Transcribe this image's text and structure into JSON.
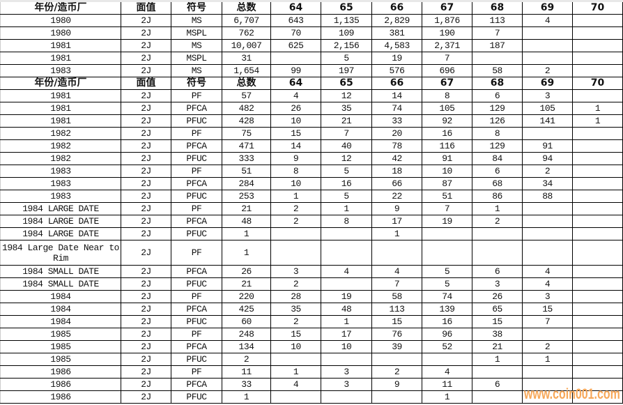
{
  "headers": [
    "年份/造币厂",
    "面值",
    "符号",
    "总数",
    "64",
    "65",
    "66",
    "67",
    "68",
    "69",
    "70"
  ],
  "section1": [
    [
      "1980",
      "2J",
      "MS",
      "6,707",
      "643",
      "1,135",
      "2,829",
      "1,876",
      "113",
      "4",
      ""
    ],
    [
      "1980",
      "2J",
      "MSPL",
      "762",
      "70",
      "109",
      "381",
      "190",
      "7",
      "",
      ""
    ],
    [
      "1981",
      "2J",
      "MS",
      "10,007",
      "625",
      "2,156",
      "4,583",
      "2,371",
      "187",
      "",
      ""
    ],
    [
      "1981",
      "2J",
      "MSPL",
      "31",
      "",
      "5",
      "19",
      "7",
      "",
      "",
      ""
    ],
    [
      "1983",
      "2J",
      "MS",
      "1,654",
      "99",
      "197",
      "576",
      "696",
      "58",
      "2",
      ""
    ]
  ],
  "section2": [
    [
      "1981",
      "2J",
      "PF",
      "57",
      "4",
      "12",
      "14",
      "8",
      "6",
      "3",
      ""
    ],
    [
      "1981",
      "2J",
      "PFCA",
      "482",
      "26",
      "35",
      "74",
      "105",
      "129",
      "105",
      "1"
    ],
    [
      "1981",
      "2J",
      "PFUC",
      "428",
      "10",
      "21",
      "33",
      "92",
      "126",
      "141",
      "1"
    ],
    [
      "1982",
      "2J",
      "PF",
      "75",
      "15",
      "7",
      "20",
      "16",
      "8",
      "",
      ""
    ],
    [
      "1982",
      "2J",
      "PFCA",
      "471",
      "14",
      "40",
      "78",
      "116",
      "129",
      "91",
      ""
    ],
    [
      "1982",
      "2J",
      "PFUC",
      "333",
      "9",
      "12",
      "42",
      "91",
      "84",
      "94",
      ""
    ],
    [
      "1983",
      "2J",
      "PF",
      "51",
      "8",
      "5",
      "18",
      "10",
      "6",
      "2",
      ""
    ],
    [
      "1983",
      "2J",
      "PFCA",
      "284",
      "10",
      "16",
      "66",
      "87",
      "68",
      "34",
      ""
    ],
    [
      "1983",
      "2J",
      "PFUC",
      "253",
      "1",
      "5",
      "22",
      "51",
      "86",
      "88",
      ""
    ],
    [
      "1984 LARGE DATE",
      "2J",
      "PF",
      "21",
      "2",
      "1",
      "9",
      "7",
      "1",
      "",
      ""
    ],
    [
      "1984 LARGE DATE",
      "2J",
      "PFCA",
      "48",
      "2",
      "8",
      "17",
      "19",
      "2",
      "",
      ""
    ],
    [
      "1984 LARGE DATE",
      "2J",
      "PFUC",
      "1",
      "",
      "",
      "1",
      "",
      "",
      "",
      ""
    ],
    [
      "1984 Large Date Near to Rim",
      "2J",
      "PF",
      "1",
      "",
      "",
      "",
      "",
      "",
      "",
      ""
    ],
    [
      "1984 SMALL DATE",
      "2J",
      "PFCA",
      "26",
      "3",
      "4",
      "4",
      "5",
      "6",
      "4",
      ""
    ],
    [
      "1984 SMALL DATE",
      "2J",
      "PFUC",
      "21",
      "2",
      "",
      "7",
      "5",
      "3",
      "4",
      ""
    ],
    [
      "1984",
      "2J",
      "PF",
      "220",
      "28",
      "19",
      "58",
      "74",
      "26",
      "3",
      ""
    ],
    [
      "1984",
      "2J",
      "PFCA",
      "425",
      "35",
      "48",
      "113",
      "139",
      "65",
      "15",
      ""
    ],
    [
      "1984",
      "2J",
      "PFUC",
      "60",
      "2",
      "1",
      "15",
      "16",
      "15",
      "7",
      ""
    ],
    [
      "1985",
      "2J",
      "PF",
      "248",
      "15",
      "17",
      "76",
      "96",
      "38",
      "",
      ""
    ],
    [
      "1985",
      "2J",
      "PFCA",
      "134",
      "10",
      "10",
      "39",
      "52",
      "21",
      "2",
      ""
    ],
    [
      "1985",
      "2J",
      "PFUC",
      "2",
      "",
      "",
      "",
      "",
      "1",
      "1",
      ""
    ],
    [
      "1986",
      "2J",
      "PF",
      "11",
      "1",
      "3",
      "2",
      "4",
      "",
      "",
      ""
    ],
    [
      "1986",
      "2J",
      "PFCA",
      "33",
      "4",
      "3",
      "9",
      "11",
      "6",
      "",
      ""
    ],
    [
      "1986",
      "2J",
      "PFUC",
      "1",
      "",
      "",
      "",
      "1",
      "",
      "",
      ""
    ]
  ],
  "watermark": "www.coin001.com",
  "colors": {
    "watermark": "#f7a85a",
    "grid": "#000000"
  }
}
